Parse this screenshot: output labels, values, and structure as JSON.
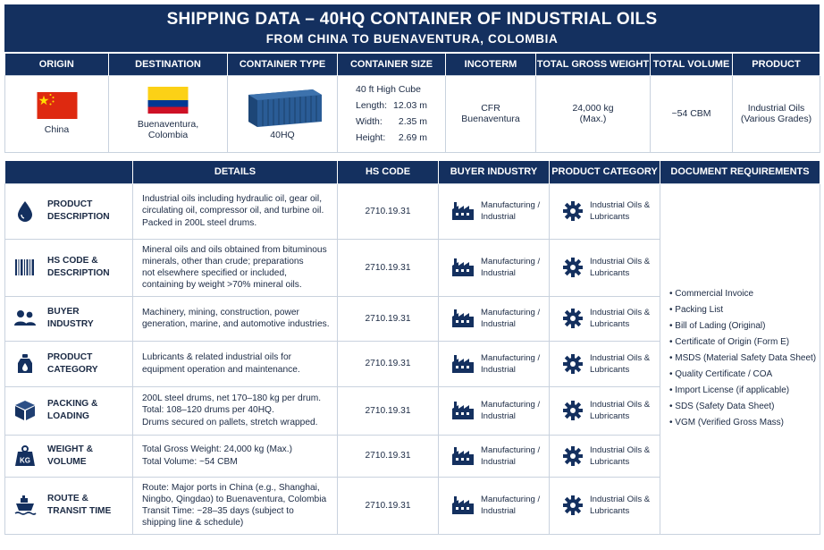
{
  "header": {
    "title": "SHIPPING DATA – 40HQ CONTAINER OF INDUSTRIAL OILS",
    "subtitle": "FROM CHINA TO BUENAVENTURA, COLOMBIA"
  },
  "summary": {
    "headers": [
      "ORIGIN",
      "DESTINATION",
      "CONTAINER TYPE",
      "CONTAINER SIZE",
      "INCOTERM",
      "TOTAL GROSS WEIGHT",
      "TOTAL VOLUME",
      "PRODUCT"
    ],
    "origin": "China",
    "destination_line1": "Buenaventura,",
    "destination_line2": "Colombia",
    "container_type": "40HQ",
    "container_size": {
      "title": "40 ft High Cube",
      "length_label": "Length:",
      "length": "12.03 m",
      "width_label": "Width:",
      "width": "2.35 m",
      "height_label": "Height:",
      "height": "2.69 m"
    },
    "incoterm_line1": "CFR",
    "incoterm_line2": "Buenaventura",
    "gross_weight_line1": "24,000 kg",
    "gross_weight_line2": "(Max.)",
    "volume": "~54 CBM",
    "product_line1": "Industrial Oils",
    "product_line2": "(Various Grades)"
  },
  "colors": {
    "navy": "#14305f",
    "border": "#c9d2de",
    "china_red": "#de2910",
    "china_yellow": "#ffde00",
    "col_yellow": "#fcd116",
    "col_blue": "#003893",
    "col_red": "#ce1126",
    "container_blue": "#2a5c96"
  },
  "table": {
    "headers": [
      "",
      "DETAILS",
      "HS CODE",
      "BUYER INDUSTRY",
      "PRODUCT CATEGORY",
      "DOCUMENT REQUIREMENTS"
    ],
    "rows": [
      {
        "icon": "oil-drop-icon",
        "label1": "PRODUCT",
        "label2": "DESCRIPTION",
        "details": [
          "Industrial oils including hydraulic oil, gear oil,",
          "circulating oil, compressor oil, and turbine oil.",
          "Packed in 200L steel drums."
        ],
        "hs": "2710.19.31",
        "industry1": "Manufacturing /",
        "industry2": "Industrial",
        "category1": "Industrial Oils &",
        "category2": "Lubricants"
      },
      {
        "icon": "barcode-icon",
        "label1": "HS CODE &",
        "label2": "DESCRIPTION",
        "details": [
          "Mineral oils and oils obtained from bituminous",
          "minerals, other than crude; preparations",
          "not elsewhere specified or included,",
          "containing by weight >70% mineral oils."
        ],
        "hs": "2710.19.31",
        "industry1": "Manufacturing /",
        "industry2": "Industrial",
        "category1": "Industrial Oils &",
        "category2": "Lubricants"
      },
      {
        "icon": "people-icon",
        "label1": "BUYER",
        "label2": "INDUSTRY",
        "details": [
          "Machinery, mining, construction, power",
          "generation, marine, and automotive industries."
        ],
        "hs": "2710.19.31",
        "industry1": "Manufacturing /",
        "industry2": "Industrial",
        "category1": "Industrial Oils &",
        "category2": "Lubricants"
      },
      {
        "icon": "oil-can-icon",
        "label1": "PRODUCT",
        "label2": "CATEGORY",
        "details": [
          "Lubricants & related industrial oils for",
          "equipment operation and maintenance."
        ],
        "hs": "2710.19.31",
        "industry1": "Manufacturing /",
        "industry2": "Industrial",
        "category1": "Industrial Oils &",
        "category2": "Lubricants"
      },
      {
        "icon": "box-icon",
        "label1": "PACKING &",
        "label2": "LOADING",
        "details": [
          "200L steel drums, net 170–180 kg per drum.",
          "Total: 108–120 drums per 40HQ.",
          "Drums secured on pallets, stretch wrapped."
        ],
        "hs": "2710.19.31",
        "industry1": "Manufacturing /",
        "industry2": "Industrial",
        "category1": "Industrial Oils &",
        "category2": "Lubricants"
      },
      {
        "icon": "weight-icon",
        "icon_text": "KG",
        "label1": "WEIGHT &",
        "label2": "VOLUME",
        "details": [
          "Total Gross Weight: 24,000 kg (Max.)",
          "Total Volume: ~54 CBM"
        ],
        "hs": "2710.19.31",
        "industry1": "Manufacturing /",
        "industry2": "Industrial",
        "category1": "Industrial Oils &",
        "category2": "Lubricants"
      },
      {
        "icon": "ship-icon",
        "label1": "ROUTE &",
        "label2": "TRANSIT TIME",
        "details": [
          "Route: Major ports in China (e.g., Shanghai,",
          "Ningbo, Qingdao) to Buenaventura, Colombia",
          "Transit Time: ~28–35 days (subject to",
          "shipping line & schedule)"
        ],
        "hs": "2710.19.31",
        "industry1": "Manufacturing /",
        "industry2": "Industrial",
        "category1": "Industrial Oils &",
        "category2": "Lubricants"
      }
    ],
    "documents": [
      "Commercial Invoice",
      "Packing List",
      "Bill of Lading (Original)",
      "Certificate of Origin (Form E)",
      "MSDS (Material Safety Data Sheet)",
      "Quality Certificate / COA",
      "Import License (if applicable)",
      "SDS (Safety Data Sheet)",
      "VGM (Verified Gross Mass)"
    ]
  }
}
